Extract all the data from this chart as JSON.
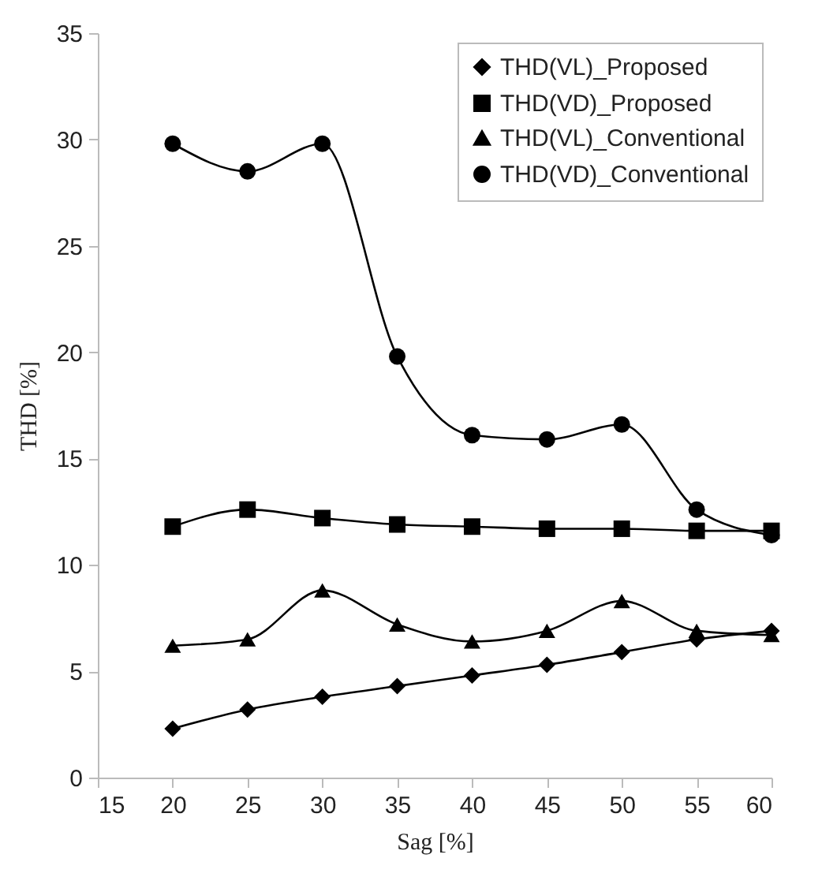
{
  "chart_data": {
    "type": "line",
    "xlabel": "Sag [%]",
    "ylabel": "THD [%]",
    "x": [
      20,
      25,
      30,
      35,
      40,
      45,
      50,
      55,
      60
    ],
    "xlim": [
      15,
      60
    ],
    "xticks": [
      15,
      20,
      25,
      30,
      35,
      40,
      45,
      50,
      55,
      60
    ],
    "ylim": [
      0,
      35
    ],
    "yticks": [
      0,
      5,
      10,
      15,
      20,
      25,
      30,
      35
    ],
    "grid": false,
    "legend": "top right",
    "series": [
      {
        "name": "THD(VL)_Proposed",
        "color": "#000000",
        "marker": "diamond",
        "values": [
          2.3,
          3.2,
          3.8,
          4.3,
          4.8,
          5.3,
          5.9,
          6.5,
          6.9
        ]
      },
      {
        "name": "THD(VD)_Proposed",
        "color": "#000000",
        "marker": "square",
        "values": [
          11.8,
          12.6,
          12.2,
          11.9,
          11.8,
          11.7,
          11.7,
          11.6,
          11.6
        ]
      },
      {
        "name": "THD(VL)_Conventional",
        "color": "#000000",
        "marker": "triangle",
        "values": [
          6.2,
          6.5,
          8.8,
          7.2,
          6.4,
          6.9,
          8.3,
          6.9,
          6.7
        ]
      },
      {
        "name": "THD(VD)_Conventional",
        "color": "#000000",
        "marker": "circle",
        "values": [
          29.8,
          28.5,
          29.8,
          19.8,
          16.1,
          15.9,
          16.6,
          12.6,
          11.4
        ]
      }
    ]
  }
}
